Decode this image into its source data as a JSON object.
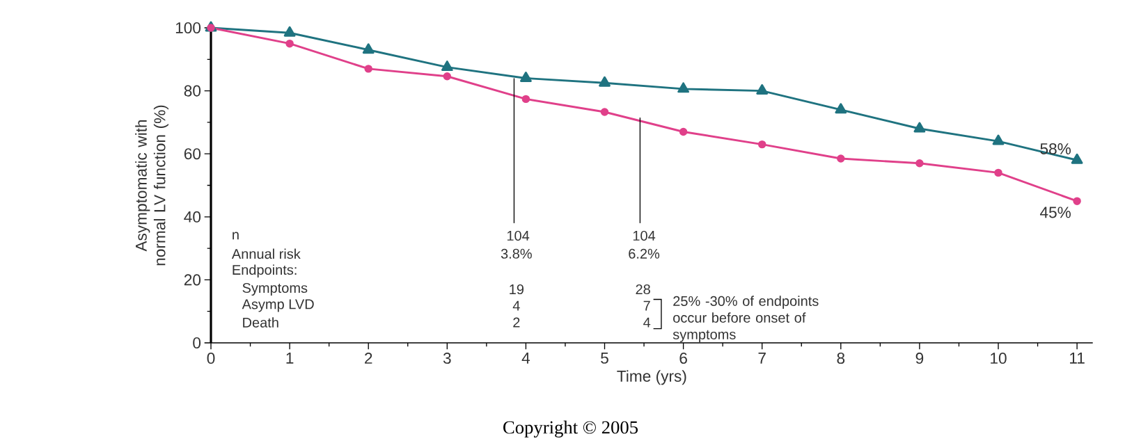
{
  "chart_data": {
    "type": "line",
    "xlabel": "Time (yrs)",
    "ylabel": "Asymptomatic with normal LV function (%)",
    "x": [
      0,
      1,
      2,
      3,
      4,
      5,
      6,
      7,
      8,
      9,
      10,
      11
    ],
    "xlim": [
      0,
      11.2
    ],
    "ylim": [
      0,
      100
    ],
    "xticks": [
      0,
      1,
      2,
      3,
      4,
      5,
      6,
      7,
      8,
      9,
      10,
      11
    ],
    "yticks": [
      0,
      20,
      40,
      60,
      80,
      100
    ],
    "grid": false,
    "series": [
      {
        "color": "#1f7380",
        "marker": "triangle",
        "values": [
          100,
          98.4,
          93,
          87.5,
          84,
          82.5,
          80.6,
          80,
          74,
          68,
          64,
          58
        ],
        "value_labels": [
          null,
          null,
          null,
          null,
          null,
          null,
          null,
          null,
          null,
          null,
          null,
          "58%"
        ]
      },
      {
        "color": "#e0408a",
        "marker": "circle",
        "values": [
          100,
          95,
          87,
          84.6,
          77.4,
          73.3,
          67,
          63,
          58.5,
          57,
          54,
          45
        ],
        "value_labels": [
          null,
          null,
          null,
          null,
          null,
          null,
          null,
          null,
          null,
          null,
          null,
          "45%"
        ]
      }
    ],
    "annotations": [
      "n",
      "Annual risk",
      "Endpoints:",
      "Symptoms",
      "Asymp LVD",
      "Death",
      {
        "text": "104",
        "x": 3.85,
        "y": 84
      },
      {
        "text": "104",
        "x": 5.45,
        "y": 71.5
      },
      "3.8%",
      "6.2%",
      "19",
      "28",
      "4",
      "7",
      "2",
      "4",
      "25% -30% of endpoints occur before onset of symptoms",
      "Copyright © 2005"
    ]
  }
}
